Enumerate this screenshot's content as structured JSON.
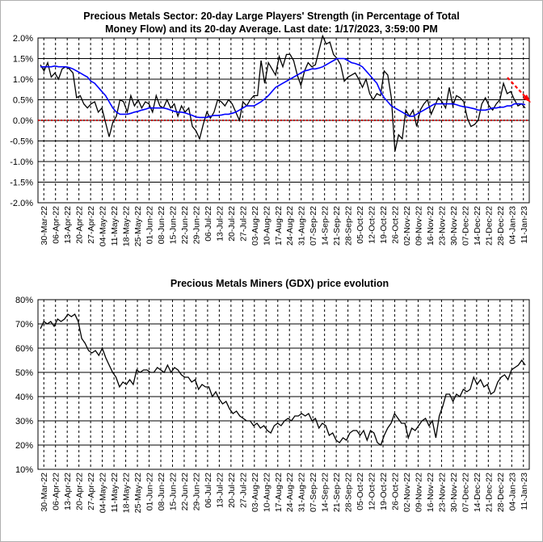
{
  "chart_data": [
    {
      "type": "line",
      "title_line1": "Precious Metals Sector: 20-day Large Players' Strength (in Percentage of Total",
      "title_line2": "Money Flow) and its 20-day Average. Last date: 1/17/2023, 3:59:00 PM",
      "ylim": [
        -2.0,
        2.0
      ],
      "y_ticks": [
        "2.0%",
        "1.5%",
        "1.0%",
        "0.5%",
        "0.0%",
        "-0.5%",
        "-1.0%",
        "-1.5%",
        "-2.0%"
      ],
      "x_ticks": [
        "30-Mar-22",
        "06-Apr-22",
        "13-Apr-22",
        "20-Apr-22",
        "27-Apr-22",
        "04-May-22",
        "11-May-22",
        "18-May-22",
        "25-May-22",
        "01-Jun-22",
        "08-Jun-22",
        "15-Jun-22",
        "22-Jun-22",
        "29-Jun-22",
        "06-Jul-22",
        "13-Jul-22",
        "20-Jul-22",
        "27-Jul-22",
        "03-Aug-22",
        "10-Aug-22",
        "17-Aug-22",
        "24-Aug-22",
        "31-Aug-22",
        "07-Sep-22",
        "14-Sep-22",
        "21-Sep-22",
        "28-Sep-22",
        "05-Oct-22",
        "12-Oct-22",
        "19-Oct-22",
        "26-Oct-22",
        "02-Nov-22",
        "09-Nov-22",
        "16-Nov-22",
        "23-Nov-22",
        "30-Nov-22",
        "07-Dec-22",
        "14-Dec-22",
        "21-Dec-22",
        "28-Dec-22",
        "04-Jan-23",
        "11-Jan-23"
      ],
      "grid": true,
      "series": [
        {
          "color": "#000000",
          "values": [
            1.35,
            1.2,
            1.4,
            1.05,
            1.15,
            1.0,
            1.25,
            1.3,
            1.25,
            1.15,
            0.55,
            0.6,
            0.4,
            0.3,
            0.4,
            0.45,
            0.2,
            0.3,
            -0.05,
            -0.4,
            -0.05,
            0.1,
            0.5,
            0.45,
            0.2,
            0.6,
            0.35,
            0.5,
            0.3,
            0.45,
            0.4,
            0.2,
            0.6,
            0.35,
            0.3,
            0.5,
            0.3,
            0.4,
            0.1,
            0.35,
            0.2,
            0.3,
            -0.15,
            -0.25,
            -0.45,
            -0.1,
            0.2,
            0.05,
            0.2,
            0.5,
            0.45,
            0.35,
            0.5,
            0.4,
            0.2,
            0.0,
            0.45,
            0.35,
            0.5,
            0.6,
            0.6,
            1.45,
            0.9,
            1.4,
            1.25,
            1.1,
            1.55,
            1.3,
            1.6,
            1.6,
            1.45,
            1.1,
            0.85,
            1.2,
            1.4,
            1.3,
            1.35,
            1.7,
            2.05,
            1.85,
            1.9,
            1.6,
            1.5,
            1.35,
            0.95,
            1.05,
            1.1,
            1.15,
            1.0,
            0.8,
            1.0,
            0.65,
            0.5,
            0.65,
            0.6,
            1.2,
            1.1,
            0.55,
            -0.75,
            -0.35,
            -0.45,
            0.25,
            0.1,
            0.25,
            -0.15,
            0.25,
            0.4,
            0.5,
            0.15,
            0.35,
            0.55,
            0.45,
            0.3,
            0.8,
            0.35,
            0.6,
            0.55,
            0.45,
            0.05,
            -0.15,
            -0.1,
            0.0,
            0.4,
            0.55,
            0.35,
            0.25,
            0.4,
            0.5,
            0.9,
            0.65,
            0.7,
            0.5,
            0.35,
            0.4,
            0.3
          ]
        },
        {
          "color": "#0000ff",
          "values": [
            1.3,
            1.3,
            1.3,
            1.3,
            1.32,
            1.3,
            1.3,
            1.3,
            1.28,
            1.25,
            1.2,
            1.15,
            1.1,
            1.05,
            0.95,
            0.9,
            0.8,
            0.7,
            0.6,
            0.45,
            0.3,
            0.2,
            0.15,
            0.15,
            0.15,
            0.17,
            0.2,
            0.22,
            0.25,
            0.27,
            0.3,
            0.3,
            0.3,
            0.3,
            0.3,
            0.28,
            0.25,
            0.22,
            0.2,
            0.2,
            0.18,
            0.15,
            0.12,
            0.08,
            0.07,
            0.07,
            0.07,
            0.1,
            0.12,
            0.12,
            0.13,
            0.15,
            0.15,
            0.17,
            0.2,
            0.25,
            0.3,
            0.35,
            0.35,
            0.35,
            0.4,
            0.45,
            0.52,
            0.6,
            0.7,
            0.8,
            0.85,
            0.9,
            0.95,
            1.0,
            1.05,
            1.1,
            1.15,
            1.2,
            1.22,
            1.25,
            1.25,
            1.27,
            1.3,
            1.35,
            1.4,
            1.45,
            1.5,
            1.5,
            1.5,
            1.45,
            1.4,
            1.38,
            1.35,
            1.3,
            1.2,
            1.1,
            1.0,
            0.9,
            0.7,
            0.55,
            0.45,
            0.35,
            0.3,
            0.25,
            0.2,
            0.15,
            0.1,
            0.1,
            0.15,
            0.2,
            0.25,
            0.3,
            0.35,
            0.4,
            0.4,
            0.4,
            0.4,
            0.4,
            0.4,
            0.38,
            0.35,
            0.33,
            0.32,
            0.3,
            0.28,
            0.25,
            0.25,
            0.25,
            0.27,
            0.3,
            0.3,
            0.32,
            0.32,
            0.35,
            0.35,
            0.4,
            0.4,
            0.4,
            0.38
          ]
        }
      ],
      "arrow_color": "#ff0000"
    },
    {
      "type": "line",
      "title": "Precious Metals Miners (GDX) price evolution",
      "ylim": [
        10,
        80
      ],
      "y_ticks": [
        "80%",
        "70%",
        "60%",
        "50%",
        "40%",
        "30%",
        "20%",
        "10%"
      ],
      "x_ticks": [
        "30-Mar-22",
        "06-Apr-22",
        "13-Apr-22",
        "20-Apr-22",
        "27-Apr-22",
        "04-May-22",
        "11-May-22",
        "18-May-22",
        "25-May-22",
        "01-Jun-22",
        "08-Jun-22",
        "15-Jun-22",
        "22-Jun-22",
        "29-Jun-22",
        "06-Jul-22",
        "13-Jul-22",
        "20-Jul-22",
        "27-Jul-22",
        "03-Aug-22",
        "10-Aug-22",
        "17-Aug-22",
        "24-Aug-22",
        "31-Aug-22",
        "07-Sep-22",
        "14-Sep-22",
        "21-Sep-22",
        "28-Sep-22",
        "05-Oct-22",
        "12-Oct-22",
        "19-Oct-22",
        "26-Oct-22",
        "02-Nov-22",
        "09-Nov-22",
        "16-Nov-22",
        "23-Nov-22",
        "30-Nov-22",
        "07-Dec-22",
        "14-Dec-22",
        "21-Dec-22",
        "28-Dec-22",
        "04-Jan-23",
        "11-Jan-23"
      ],
      "grid": true,
      "series": [
        {
          "color": "#000000",
          "values": [
            68,
            71,
            70,
            71,
            69,
            72,
            71,
            72,
            74,
            73,
            74,
            71,
            64,
            62,
            59,
            58,
            59,
            57,
            60,
            56,
            53,
            50,
            48,
            44,
            46,
            45,
            47,
            45,
            51,
            50,
            51,
            51,
            50,
            50,
            52,
            51,
            50,
            53,
            50,
            52,
            51,
            49,
            48,
            48,
            46,
            47,
            43,
            45,
            44,
            44,
            40,
            42,
            39,
            37,
            38,
            35,
            33,
            34,
            32,
            31,
            30,
            30,
            28,
            29,
            27,
            28,
            26,
            25,
            28,
            29,
            28,
            30,
            31,
            30,
            32,
            32,
            33,
            32,
            33,
            30,
            31,
            27,
            29,
            28,
            24,
            25,
            22,
            21,
            23,
            22,
            25,
            26,
            26,
            24,
            26,
            22,
            26,
            25,
            21,
            20,
            24,
            27,
            29,
            33,
            31,
            29,
            29,
            23,
            27,
            26,
            28,
            30,
            31,
            28,
            30,
            23,
            32,
            36,
            41,
            41,
            38,
            41,
            40,
            43,
            42,
            43,
            48,
            45,
            47,
            44,
            45,
            41,
            42,
            46,
            48,
            49,
            47,
            51,
            52,
            53,
            55,
            53
          ]
        }
      ]
    }
  ]
}
